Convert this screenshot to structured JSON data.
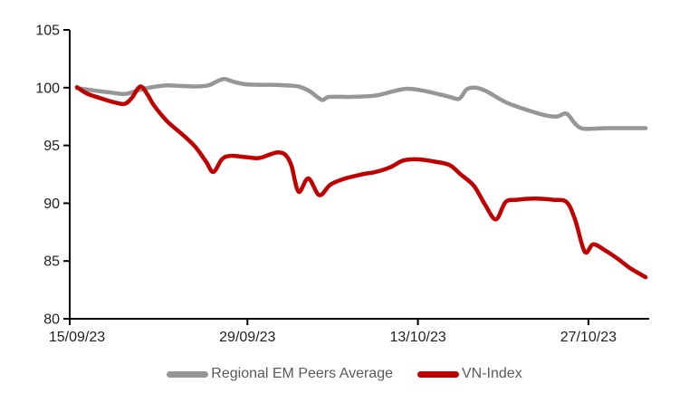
{
  "page": {
    "background": "#ffffff"
  },
  "colors": {
    "axis": "#000000",
    "tick_label": "#1f1f1f",
    "legend_text": "#595959"
  },
  "chart_data": {
    "type": "line",
    "title": "",
    "xlabel": "",
    "ylabel": "",
    "grid": false,
    "legend_position": "bottom",
    "x_axis": {
      "tick_labels": [
        "15/09/23",
        "29/09/23",
        "13/10/23",
        "27/10/23"
      ],
      "tick_days": [
        0,
        14,
        28,
        42
      ],
      "domain_days": [
        0,
        46.7
      ]
    },
    "y_axis": {
      "ticks": [
        80,
        85,
        90,
        95,
        100,
        105
      ],
      "min": 80,
      "max": 105
    },
    "series": [
      {
        "name": "Regional EM Peers Average",
        "color": "#969696",
        "points": [
          [
            0,
            99.95
          ],
          [
            1.1,
            99.8
          ],
          [
            2.6,
            99.6
          ],
          [
            3.9,
            99.45
          ],
          [
            4.8,
            99.7
          ],
          [
            5.7,
            99.95
          ],
          [
            6.5,
            100.1
          ],
          [
            7.4,
            100.2
          ],
          [
            8.6,
            100.15
          ],
          [
            9.7,
            100.1
          ],
          [
            10.8,
            100.2
          ],
          [
            11.5,
            100.55
          ],
          [
            12.1,
            100.75
          ],
          [
            12.9,
            100.5
          ],
          [
            13.8,
            100.3
          ],
          [
            14.9,
            100.25
          ],
          [
            16.0,
            100.25
          ],
          [
            17.1,
            100.2
          ],
          [
            18.2,
            100.1
          ],
          [
            19.1,
            99.7
          ],
          [
            20.1,
            98.95
          ],
          [
            20.7,
            99.2
          ],
          [
            22.5,
            99.2
          ],
          [
            24.4,
            99.3
          ],
          [
            25.3,
            99.5
          ],
          [
            27.0,
            99.9
          ],
          [
            28.6,
            99.7
          ],
          [
            30.6,
            99.2
          ],
          [
            31.4,
            99.05
          ],
          [
            32.0,
            99.85
          ],
          [
            32.7,
            100.0
          ],
          [
            33.6,
            99.7
          ],
          [
            35.1,
            98.8
          ],
          [
            36.3,
            98.3
          ],
          [
            38.3,
            97.65
          ],
          [
            39.4,
            97.5
          ],
          [
            40.2,
            97.75
          ],
          [
            40.9,
            96.9
          ],
          [
            41.6,
            96.45
          ],
          [
            43.5,
            96.5
          ],
          [
            45.0,
            96.5
          ],
          [
            46.7,
            96.5
          ]
        ]
      },
      {
        "name": "VN-Index",
        "color": "#c00000",
        "points": [
          [
            0,
            100.05
          ],
          [
            0.8,
            99.5
          ],
          [
            1.9,
            99.1
          ],
          [
            3.0,
            98.75
          ],
          [
            3.9,
            98.6
          ],
          [
            4.5,
            99.1
          ],
          [
            5.2,
            100.1
          ],
          [
            5.8,
            99.4
          ],
          [
            6.3,
            98.5
          ],
          [
            7.4,
            97.1
          ],
          [
            8.6,
            96.0
          ],
          [
            9.7,
            94.9
          ],
          [
            10.6,
            93.6
          ],
          [
            11.2,
            92.7
          ],
          [
            11.9,
            93.8
          ],
          [
            12.6,
            94.1
          ],
          [
            13.8,
            94.0
          ],
          [
            14.9,
            93.9
          ],
          [
            15.8,
            94.2
          ],
          [
            16.5,
            94.4
          ],
          [
            17.1,
            94.2
          ],
          [
            17.6,
            93.3
          ],
          [
            18.2,
            91.0
          ],
          [
            19.0,
            92.15
          ],
          [
            19.9,
            90.7
          ],
          [
            20.8,
            91.6
          ],
          [
            21.9,
            92.1
          ],
          [
            23.4,
            92.5
          ],
          [
            24.5,
            92.7
          ],
          [
            25.7,
            93.1
          ],
          [
            26.8,
            93.7
          ],
          [
            27.9,
            93.8
          ],
          [
            29.4,
            93.6
          ],
          [
            30.6,
            93.3
          ],
          [
            31.5,
            92.5
          ],
          [
            32.6,
            91.5
          ],
          [
            33.5,
            89.9
          ],
          [
            34.4,
            88.6
          ],
          [
            35.2,
            90.1
          ],
          [
            36.1,
            90.3
          ],
          [
            37.6,
            90.4
          ],
          [
            39.1,
            90.3
          ],
          [
            40.2,
            90.1
          ],
          [
            40.9,
            88.6
          ],
          [
            41.7,
            85.8
          ],
          [
            42.4,
            86.45
          ],
          [
            43.4,
            85.9
          ],
          [
            44.4,
            85.2
          ],
          [
            45.4,
            84.4
          ],
          [
            46.7,
            83.6
          ]
        ]
      }
    ]
  }
}
